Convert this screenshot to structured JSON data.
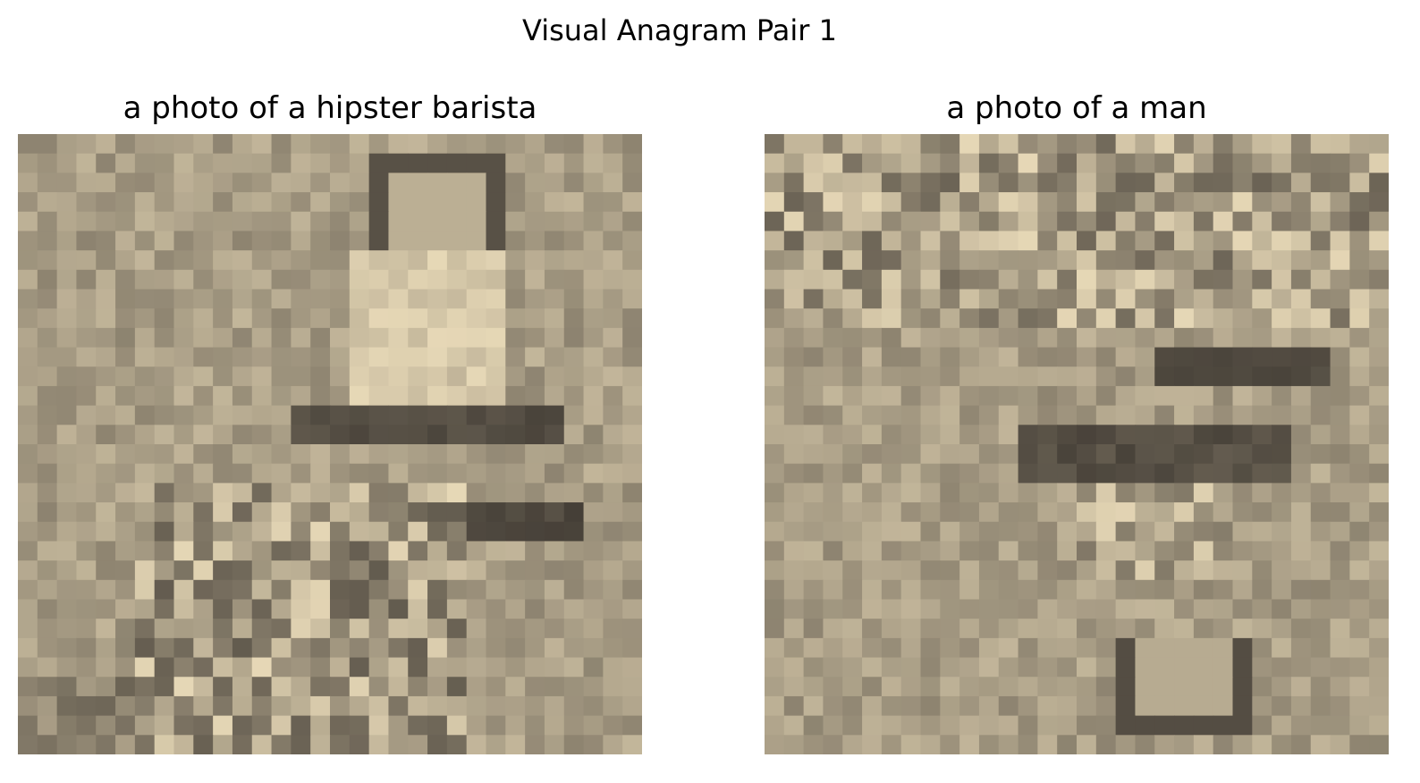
{
  "figure": {
    "title": "Visual Anagram Pair 1"
  },
  "panels": [
    {
      "title": "a photo of a hipster barista",
      "image_icon": "pixelated-photo-barista"
    },
    {
      "title": "a photo of a man",
      "image_icon": "pixelated-photo-man"
    }
  ],
  "palette": {
    "background": "#ffffff",
    "sepia_base": "#cbbf9c",
    "sepia_light": "#e8e1cc",
    "sepia_dark": "#3a3530"
  }
}
